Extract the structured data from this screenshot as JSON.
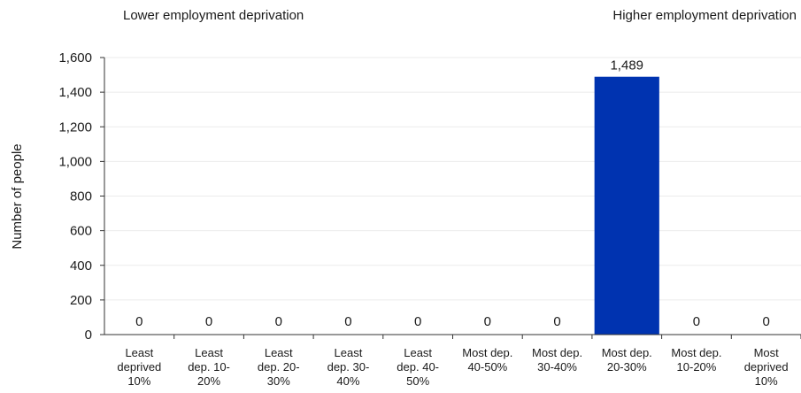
{
  "chart_data": {
    "type": "bar",
    "annotations": {
      "left": "Lower employment deprivation",
      "right": "Higher employment deprivation"
    },
    "xlabel": "",
    "ylabel": "Number of people",
    "ylim": [
      0,
      1600
    ],
    "yticks": [
      "0",
      "200",
      "400",
      "600",
      "800",
      "1,000",
      "1,200",
      "1,400",
      "1,600"
    ],
    "categories": [
      [
        "Least",
        "deprived",
        "10%"
      ],
      [
        "Least",
        "dep. 10-",
        "20%"
      ],
      [
        "Least",
        "dep. 20-",
        "30%"
      ],
      [
        "Least",
        "dep. 30-",
        "40%"
      ],
      [
        "Least",
        "dep. 40-",
        "50%"
      ],
      [
        "Most dep.",
        "40-50%"
      ],
      [
        "Most dep.",
        "30-40%"
      ],
      [
        "Most dep.",
        "20-30%"
      ],
      [
        "Most dep.",
        "10-20%"
      ],
      [
        "Most",
        "deprived",
        "10%"
      ]
    ],
    "values": [
      0,
      0,
      0,
      0,
      0,
      0,
      0,
      1489,
      0,
      0
    ],
    "data_labels": [
      "0",
      "0",
      "0",
      "0",
      "0",
      "0",
      "0",
      "1,489",
      "0",
      "0"
    ],
    "grid": true,
    "legend": "none",
    "colors": {
      "bar": "#0033b0",
      "grid": "#ebebeb",
      "axis": "#333333"
    }
  }
}
